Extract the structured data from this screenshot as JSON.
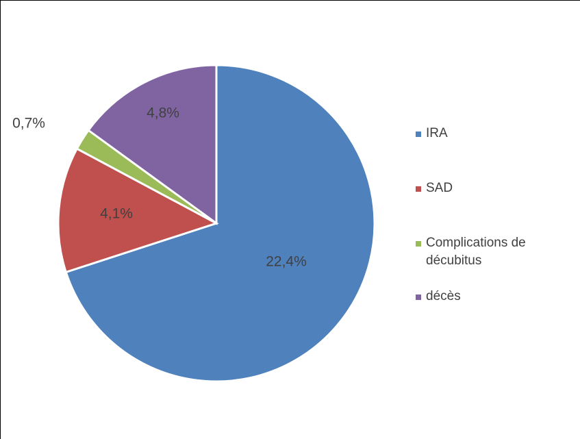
{
  "chart_data": {
    "type": "pie",
    "categories": [
      "IRA",
      "SAD",
      "Complications de décubitus",
      "décès"
    ],
    "values": [
      22.4,
      4.1,
      0.7,
      4.8
    ],
    "value_labels": [
      "22,4%",
      "4,1%",
      "0,7%",
      "4,8%"
    ],
    "colors": [
      "#4f81bd",
      "#c0504d",
      "#9bbb59",
      "#8064a2"
    ],
    "legend": "right"
  }
}
